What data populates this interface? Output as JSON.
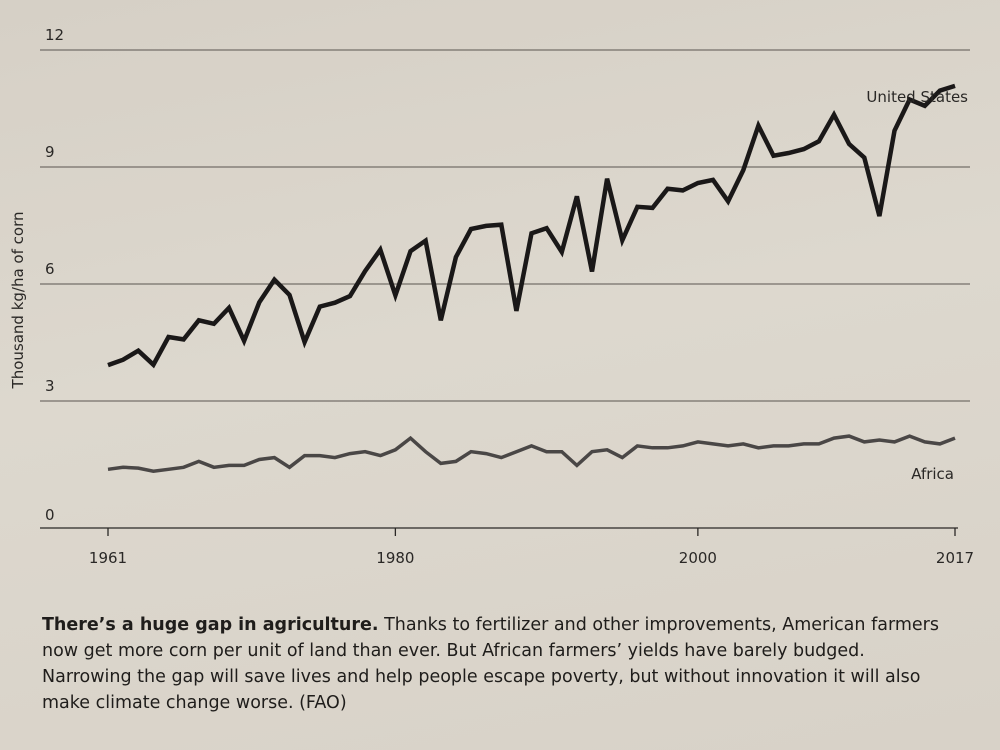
{
  "chart_data": {
    "type": "line",
    "title": "",
    "xlabel": "",
    "ylabel": "Thousand kg/ha of corn",
    "ylim": [
      0,
      12
    ],
    "yticks": [
      "0",
      "3",
      "6",
      "9",
      "12"
    ],
    "xticks": [
      "1961",
      "1980",
      "2000",
      "2017"
    ],
    "xlim": [
      1961,
      2017
    ],
    "grid": true,
    "x_start": 1961,
    "series": [
      {
        "name": "United States",
        "color": "#1a1818",
        "values": [
          3.92,
          4.06,
          4.29,
          3.93,
          4.64,
          4.58,
          5.07,
          4.98,
          5.39,
          4.54,
          5.53,
          6.11,
          5.72,
          4.51,
          5.42,
          5.52,
          5.69,
          6.33,
          6.88,
          5.71,
          6.84,
          7.11,
          5.07,
          6.69,
          7.41,
          7.49,
          7.52,
          5.31,
          7.3,
          7.43,
          6.82,
          8.25,
          6.32,
          8.7,
          7.12,
          7.98,
          7.95,
          8.44,
          8.4,
          8.59,
          8.67,
          8.12,
          8.92,
          10.06,
          9.29,
          9.36,
          9.46,
          9.66,
          10.34,
          9.59,
          9.24,
          7.74,
          9.93,
          10.73,
          10.57,
          10.96,
          11.08
        ]
      },
      {
        "name": "Africa",
        "color": "#4a4746",
        "values": [
          1.25,
          1.3,
          1.28,
          1.2,
          1.25,
          1.3,
          1.45,
          1.3,
          1.35,
          1.35,
          1.5,
          1.55,
          1.3,
          1.6,
          1.6,
          1.55,
          1.65,
          1.7,
          1.6,
          1.75,
          2.05,
          1.7,
          1.4,
          1.45,
          1.7,
          1.65,
          1.55,
          1.7,
          1.85,
          1.7,
          1.7,
          1.35,
          1.7,
          1.75,
          1.55,
          1.85,
          1.8,
          1.8,
          1.85,
          1.95,
          1.9,
          1.85,
          1.9,
          1.8,
          1.85,
          1.85,
          1.9,
          1.9,
          2.05,
          2.1,
          1.95,
          2.0,
          1.95,
          2.1,
          1.95,
          1.9,
          2.05
        ]
      }
    ]
  },
  "caption": {
    "bold": "There’s a huge gap in agriculture.",
    "text": " Thanks to fertilizer and other improvements, American farmers now get more corn per unit of land than ever. But African farmers’ yields have barely budged. Narrowing the gap will save lives and help people escape poverty, but without innovation it will also make climate change worse. (FAO)"
  }
}
